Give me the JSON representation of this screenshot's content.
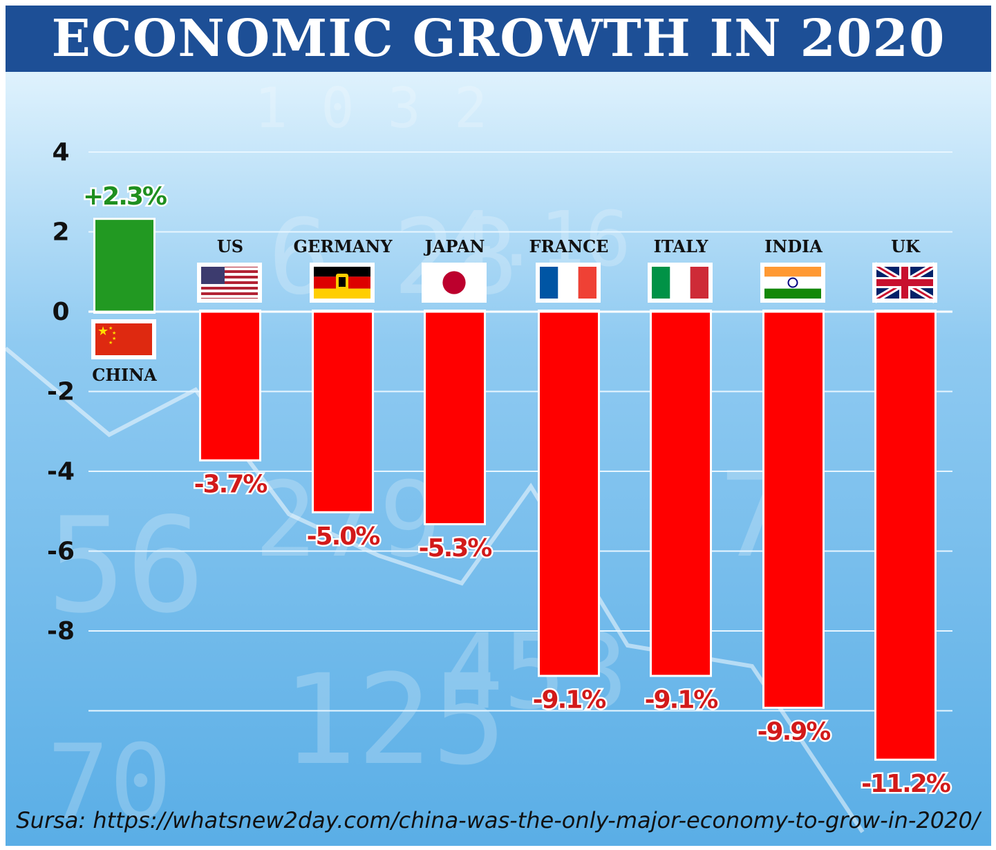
{
  "title": "ECONOMIC GROWTH IN 2020",
  "source": "Sursa: https://whatsnew2day.com/china-was-the-only-major-economy-to-grow-in-2020/",
  "colors": {
    "header_bg": "#1d4f96",
    "background": "#5aaee6",
    "positive_bar": "#229922",
    "negative_bar": "#ff0000",
    "positive_label": "#1f8f1f",
    "negative_label": "#d21a1a",
    "gridline": "#e8f6ff"
  },
  "chart_data": {
    "type": "bar",
    "title": "ECONOMIC GROWTH IN 2020",
    "categories": [
      "CHINA",
      "US",
      "GERMANY",
      "JAPAN",
      "FRANCE",
      "ITALY",
      "INDIA",
      "UK"
    ],
    "values": [
      2.3,
      -3.7,
      -5.0,
      -5.3,
      -9.1,
      -9.1,
      -9.9,
      -11.2
    ],
    "value_labels": [
      "+2.3%",
      "-3.7%",
      "-5.0%",
      "-5.3%",
      "-9.1%",
      "-9.1%",
      "-9.9%",
      "-11.2%"
    ],
    "flag_icons": [
      "china-flag-icon",
      "us-flag-icon",
      "germany-flag-icon",
      "japan-flag-icon",
      "france-flag-icon",
      "italy-flag-icon",
      "india-flag-icon",
      "uk-flag-icon"
    ],
    "yticks": [
      4,
      2,
      0,
      -2,
      -4,
      -6,
      -8
    ],
    "ylim": [
      -12,
      4
    ],
    "grid": true,
    "xlabel": "",
    "ylabel": ""
  }
}
